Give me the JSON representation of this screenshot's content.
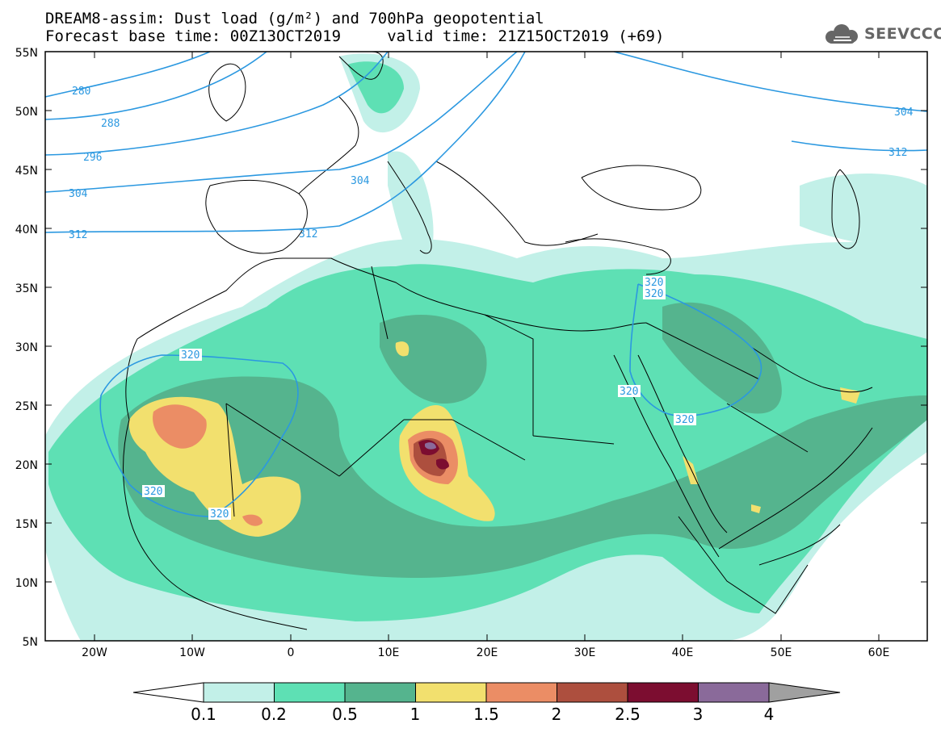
{
  "title": {
    "line1": "DREAM8-assim: Dust load (g/m²) and 700hPa geopotential",
    "line2": "Forecast base time: 00Z13OCT2019     valid time: 21Z15OCT2019 (+69)"
  },
  "logo": {
    "text": "SEEVCCC",
    "icon": "cloud-icon"
  },
  "axes": {
    "lat_labels": [
      "55N",
      "50N",
      "45N",
      "40N",
      "35N",
      "30N",
      "25N",
      "20N",
      "15N",
      "10N",
      "5N"
    ],
    "lon_labels": [
      "20W",
      "10W",
      "0",
      "10E",
      "20E",
      "30E",
      "40E",
      "50E",
      "60E"
    ]
  },
  "contours": {
    "labels": [
      "280",
      "288",
      "296",
      "304",
      "312",
      "312",
      "304",
      "304",
      "312",
      "320",
      "320",
      "320",
      "320",
      "320",
      "320",
      "320"
    ]
  },
  "colorbar": {
    "labels": [
      "0.1",
      "0.2",
      "0.5",
      "1",
      "1.5",
      "2",
      "2.5",
      "3",
      "4"
    ],
    "colors": [
      "#c2f0e8",
      "#5ee0b4",
      "#55b48e",
      "#f2e06e",
      "#eb8d65",
      "#ad4f3e",
      "#7c0d30",
      "#8a6a9a"
    ],
    "over_color": "#a0a0a0",
    "under_color": "#ffffff"
  },
  "colors": {
    "land_border": "#000000",
    "contour": "#2b98e0",
    "dust_lt": "#c2f0e8",
    "dust_md": "#5ee0b4",
    "dust_dk": "#55b48e",
    "dust_yl": "#f2e06e",
    "dust_or": "#eb8d65",
    "dust_rd": "#ad4f3e",
    "dust_mr": "#7c0d30",
    "dust_pu": "#8a6a9a"
  }
}
